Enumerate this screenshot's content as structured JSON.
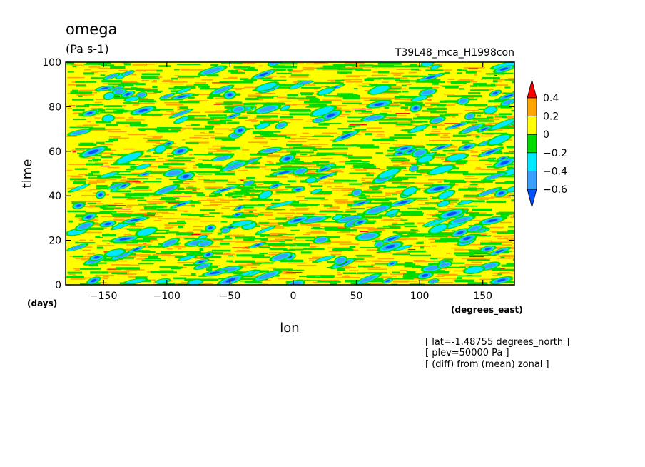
{
  "chart_data": {
    "type": "heatmap",
    "title": "omega",
    "units": "(Pa s-1)",
    "subtitle_right": "T39L48_mca_H1998con",
    "xlabel": "lon",
    "ylabel": "time",
    "x_unit_label": "(degrees_east)",
    "y_unit_label": "(days)",
    "xlim": [
      -180,
      175
    ],
    "ylim": [
      0,
      100
    ],
    "x_ticks": [
      -150,
      -100,
      -50,
      0,
      50,
      100,
      150
    ],
    "y_ticks": [
      0,
      20,
      40,
      60,
      80,
      100
    ],
    "colorbar": {
      "levels": [
        -0.6,
        -0.4,
        -0.2,
        0,
        0.2,
        0.4
      ],
      "colors": [
        "#0050ff",
        "#3aa0ff",
        "#00e8ff",
        "#00dc00",
        "#ffff00",
        "#ffa500",
        "#ff0000"
      ],
      "extend": "both"
    },
    "grid": false,
    "legend_position": "right"
  },
  "notes": [
    "[ lat=-1.48755 degrees_north ]",
    "[ plev=50000 Pa ]",
    "[ (diff) from (mean) zonal ]"
  ]
}
